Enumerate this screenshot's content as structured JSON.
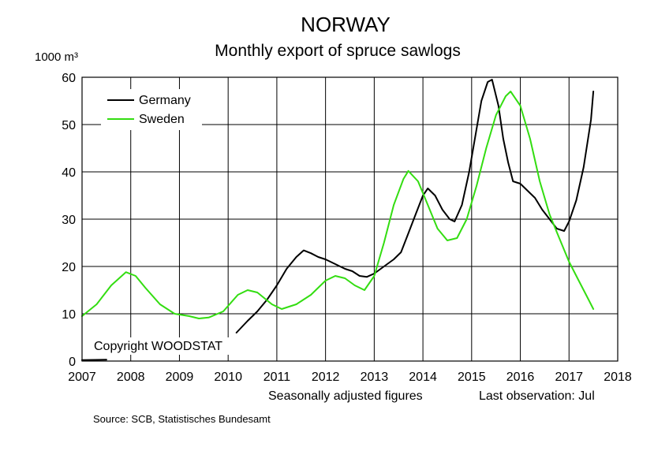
{
  "title": "NORWAY",
  "subtitle": "Monthly export of spruce sawlogs",
  "unit_label": "1000 m³",
  "copyright": "Copyright WOODSTAT",
  "footer_left": "Seasonally adjusted figures",
  "footer_right": "Last observation: Jul",
  "source": "Source: SCB, Statistisches Bundesamt",
  "colors": {
    "Germany": "#000000",
    "Sweden": "#33dd11"
  },
  "chart_data": {
    "type": "line",
    "xlim": [
      2007,
      2018
    ],
    "ylim": [
      0,
      60
    ],
    "x_ticks": [
      "2007",
      "2008",
      "2009",
      "2010",
      "2011",
      "2012",
      "2013",
      "2014",
      "2015",
      "2016",
      "2017",
      "2018"
    ],
    "y_ticks": [
      "0",
      "10",
      "20",
      "30",
      "40",
      "50",
      "60"
    ],
    "grid": true,
    "legend_position": "top-left",
    "series": [
      {
        "name": "Germany",
        "color": "#000000",
        "points": [
          [
            2007.0,
            0.2
          ],
          [
            2007.5,
            0.3
          ],
          [
            2010.17,
            6.0
          ],
          [
            2010.4,
            8.5
          ],
          [
            2010.6,
            10.5
          ],
          [
            2010.8,
            13.0
          ],
          [
            2011.0,
            16.0
          ],
          [
            2011.2,
            19.5
          ],
          [
            2011.4,
            22.0
          ],
          [
            2011.55,
            23.4
          ],
          [
            2011.7,
            22.8
          ],
          [
            2011.85,
            22.0
          ],
          [
            2012.0,
            21.5
          ],
          [
            2012.2,
            20.5
          ],
          [
            2012.4,
            19.5
          ],
          [
            2012.55,
            19.0
          ],
          [
            2012.7,
            18.0
          ],
          [
            2012.85,
            17.8
          ],
          [
            2013.0,
            18.5
          ],
          [
            2013.2,
            20.0
          ],
          [
            2013.4,
            21.5
          ],
          [
            2013.55,
            23.0
          ],
          [
            2013.7,
            27.0
          ],
          [
            2013.85,
            31.0
          ],
          [
            2014.0,
            35.0
          ],
          [
            2014.1,
            36.5
          ],
          [
            2014.25,
            35.0
          ],
          [
            2014.4,
            32.0
          ],
          [
            2014.55,
            30.0
          ],
          [
            2014.65,
            29.5
          ],
          [
            2014.8,
            33.0
          ],
          [
            2014.95,
            40.0
          ],
          [
            2015.1,
            49.0
          ],
          [
            2015.2,
            55.0
          ],
          [
            2015.33,
            59.0
          ],
          [
            2015.42,
            59.5
          ],
          [
            2015.55,
            54.0
          ],
          [
            2015.65,
            47.0
          ],
          [
            2015.75,
            42.0
          ],
          [
            2015.85,
            38.0
          ],
          [
            2016.0,
            37.5
          ],
          [
            2016.15,
            36.0
          ],
          [
            2016.3,
            34.5
          ],
          [
            2016.45,
            32.0
          ],
          [
            2016.6,
            30.0
          ],
          [
            2016.75,
            28.0
          ],
          [
            2016.9,
            27.5
          ],
          [
            2017.0,
            29.5
          ],
          [
            2017.15,
            34.0
          ],
          [
            2017.3,
            41.0
          ],
          [
            2017.45,
            51.0
          ],
          [
            2017.5,
            57.0
          ]
        ]
      },
      {
        "name": "Sweden",
        "color": "#33dd11",
        "points": [
          [
            2007.0,
            9.5
          ],
          [
            2007.3,
            12.0
          ],
          [
            2007.6,
            16.0
          ],
          [
            2007.9,
            18.8
          ],
          [
            2008.1,
            18.0
          ],
          [
            2008.3,
            15.5
          ],
          [
            2008.6,
            12.0
          ],
          [
            2008.9,
            10.0
          ],
          [
            2009.2,
            9.5
          ],
          [
            2009.4,
            9.0
          ],
          [
            2009.6,
            9.2
          ],
          [
            2009.9,
            10.5
          ],
          [
            2010.2,
            14.0
          ],
          [
            2010.4,
            15.0
          ],
          [
            2010.6,
            14.5
          ],
          [
            2010.9,
            12.0
          ],
          [
            2011.1,
            11.0
          ],
          [
            2011.4,
            12.0
          ],
          [
            2011.7,
            14.0
          ],
          [
            2012.0,
            17.0
          ],
          [
            2012.2,
            18.0
          ],
          [
            2012.4,
            17.5
          ],
          [
            2012.6,
            16.0
          ],
          [
            2012.8,
            15.0
          ],
          [
            2013.0,
            18.0
          ],
          [
            2013.2,
            25.0
          ],
          [
            2013.4,
            33.0
          ],
          [
            2013.6,
            38.5
          ],
          [
            2013.7,
            40.2
          ],
          [
            2013.9,
            38.0
          ],
          [
            2014.1,
            33.0
          ],
          [
            2014.3,
            28.0
          ],
          [
            2014.5,
            25.5
          ],
          [
            2014.7,
            26.0
          ],
          [
            2014.9,
            30.0
          ],
          [
            2015.1,
            37.0
          ],
          [
            2015.3,
            45.0
          ],
          [
            2015.5,
            52.0
          ],
          [
            2015.7,
            56.0
          ],
          [
            2015.8,
            57.0
          ],
          [
            2016.0,
            54.0
          ],
          [
            2016.2,
            47.0
          ],
          [
            2016.4,
            38.0
          ],
          [
            2016.6,
            31.0
          ],
          [
            2016.8,
            26.0
          ],
          [
            2017.0,
            21.0
          ],
          [
            2017.2,
            17.0
          ],
          [
            2017.4,
            13.0
          ],
          [
            2017.5,
            11.0
          ]
        ]
      }
    ]
  }
}
